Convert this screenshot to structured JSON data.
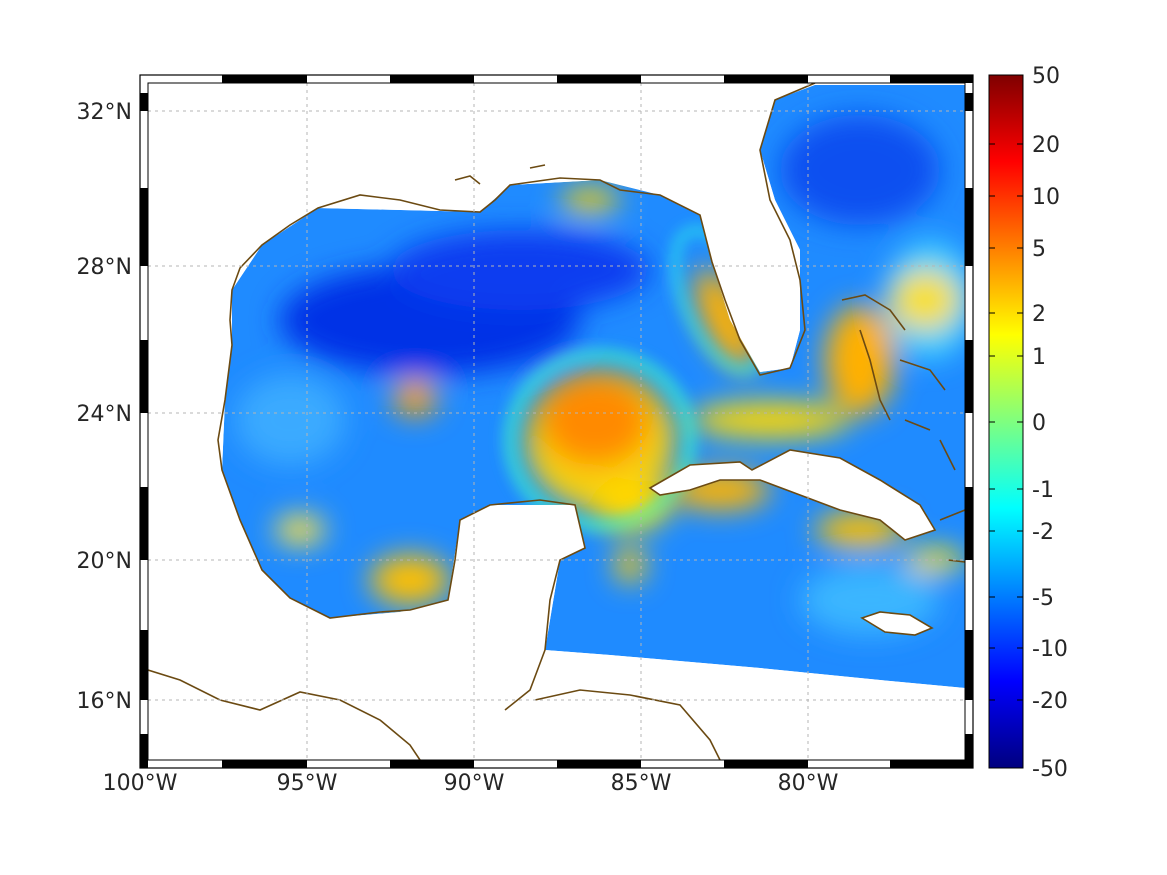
{
  "map": {
    "type": "gridded-anomaly-map",
    "region": "Gulf of Mexico / Caribbean",
    "lon_range": [
      -100,
      -75
    ],
    "lat_range": [
      14.2,
      33
    ],
    "x_ticks": [
      {
        "value": -100,
        "label": "100°W"
      },
      {
        "value": -95,
        "label": "95°W"
      },
      {
        "value": -90,
        "label": "90°W"
      },
      {
        "value": -85,
        "label": "85°W"
      },
      {
        "value": -80,
        "label": "80°W"
      }
    ],
    "y_ticks": [
      {
        "value": 32,
        "label": "32°N"
      },
      {
        "value": 28,
        "label": "28°N"
      },
      {
        "value": 24,
        "label": "24°N"
      },
      {
        "value": 20,
        "label": "20°N"
      },
      {
        "value": 16,
        "label": "16°N"
      }
    ],
    "grid": true,
    "frame": "alternating black/white border",
    "coast_color": "#6b4a12",
    "land_color": "#ffffff",
    "hotspots": [
      {
        "name": "Loop Current region",
        "lon": -86.5,
        "lat": 24,
        "value": 6
      },
      {
        "name": "West Florida shelf",
        "lon": -82.8,
        "lat": 26.2,
        "value": 3
      },
      {
        "name": "Western Gulf eddy",
        "lon": -91.5,
        "lat": 24.4,
        "value": 3
      },
      {
        "name": "Bay of Campeche",
        "lon": -92.5,
        "lat": 19.5,
        "value": 2
      },
      {
        "name": "Bahamas",
        "lon": -77.5,
        "lat": 25.5,
        "value": 3
      },
      {
        "name": "South of Cuba",
        "lon": -78,
        "lat": 20.5,
        "value": 2.5
      },
      {
        "name": "Central Gulf minimum",
        "lon": -91,
        "lat": 26.5,
        "value": -15
      }
    ]
  },
  "colorbar": {
    "labels": [
      "50",
      "20",
      "10",
      "5",
      "2",
      "1",
      "0",
      "-1",
      "-2",
      "-5",
      "-10",
      "-20",
      "-50"
    ],
    "colormap": "jet",
    "colors": [
      "#00007f",
      "#0000ff",
      "#007fff",
      "#00ffff",
      "#7fff7f",
      "#ffff00",
      "#ff7f00",
      "#ff0000",
      "#7f0000"
    ]
  }
}
